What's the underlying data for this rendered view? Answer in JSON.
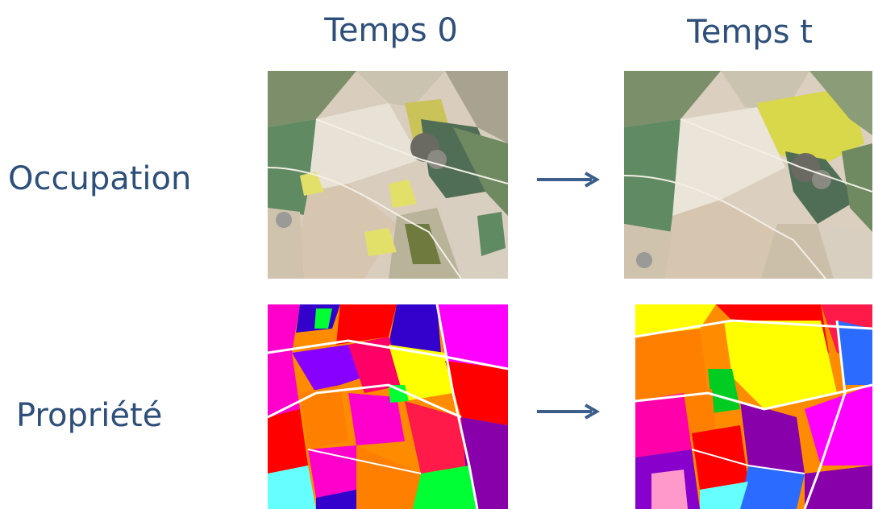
{
  "columns": {
    "time0": "Temps 0",
    "timet": "Temps t"
  },
  "rows": {
    "occupation": "Occupation",
    "propriete": "Propriété"
  },
  "images": {
    "occupation_t0": "aerial-photo-icon",
    "occupation_tt": "aerial-photo-icon",
    "propriete_t0": "parcel-map-icon",
    "propriete_tt": "parcel-map-icon"
  },
  "arrows": {
    "icon": "right-arrow-icon",
    "color": "#3b5f8a"
  },
  "colors": {
    "text": "#2d4f7a"
  }
}
